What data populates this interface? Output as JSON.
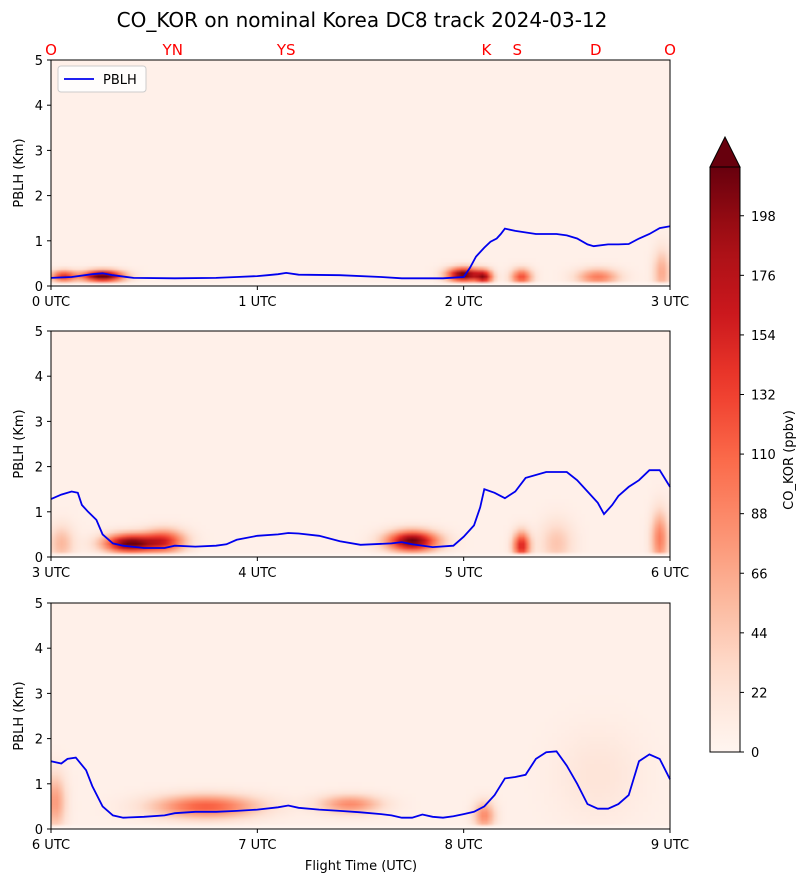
{
  "chart_data": {
    "type": "heatmap",
    "title": "CO_KOR on nominal Korea DC8 track 2024-03-12",
    "xlabel": "Flight Time (UTC)",
    "ylabel": "PBLH (Km)",
    "ylim": [
      0,
      5
    ],
    "yticks": [
      "0",
      "1",
      "2",
      "3",
      "4",
      "5"
    ],
    "legend": {
      "entries": [
        "PBLH"
      ],
      "placement": "upper-left",
      "line_color": "#0000ee"
    },
    "location_labels": [
      {
        "label": "O",
        "hour": 0.0
      },
      {
        "label": "YN",
        "hour": 0.59
      },
      {
        "label": "YS",
        "hour": 1.14
      },
      {
        "label": "K",
        "hour": 2.11
      },
      {
        "label": "S",
        "hour": 2.26
      },
      {
        "label": "D",
        "hour": 2.64
      },
      {
        "label": "O",
        "hour": 3.0
      }
    ],
    "colorbar": {
      "label": "CO_KOR (ppbv)",
      "ticks": [
        "0",
        "22",
        "44",
        "66",
        "88",
        "110",
        "132",
        "154",
        "176",
        "198"
      ],
      "min": 0,
      "max": 216,
      "extend": "max",
      "colormap": "Reds"
    },
    "panels": [
      {
        "xlim": [
          0,
          3
        ],
        "xticks": [
          "0 UTC",
          "1 UTC",
          "2 UTC",
          "3 UTC"
        ],
        "pblh": [
          [
            0.0,
            0.18
          ],
          [
            0.1,
            0.2
          ],
          [
            0.2,
            0.26
          ],
          [
            0.25,
            0.28
          ],
          [
            0.3,
            0.24
          ],
          [
            0.4,
            0.18
          ],
          [
            0.6,
            0.17
          ],
          [
            0.8,
            0.18
          ],
          [
            0.9,
            0.2
          ],
          [
            1.0,
            0.22
          ],
          [
            1.05,
            0.24
          ],
          [
            1.1,
            0.26
          ],
          [
            1.14,
            0.29
          ],
          [
            1.2,
            0.25
          ],
          [
            1.4,
            0.24
          ],
          [
            1.6,
            0.2
          ],
          [
            1.7,
            0.17
          ],
          [
            1.9,
            0.17
          ],
          [
            2.0,
            0.2
          ],
          [
            2.03,
            0.4
          ],
          [
            2.06,
            0.65
          ],
          [
            2.1,
            0.85
          ],
          [
            2.13,
            0.98
          ],
          [
            2.16,
            1.05
          ],
          [
            2.18,
            1.15
          ],
          [
            2.2,
            1.27
          ],
          [
            2.25,
            1.22
          ],
          [
            2.35,
            1.15
          ],
          [
            2.45,
            1.15
          ],
          [
            2.5,
            1.12
          ],
          [
            2.55,
            1.05
          ],
          [
            2.6,
            0.92
          ],
          [
            2.63,
            0.88
          ],
          [
            2.7,
            0.92
          ],
          [
            2.75,
            0.92
          ],
          [
            2.8,
            0.93
          ],
          [
            2.85,
            1.05
          ],
          [
            2.9,
            1.15
          ],
          [
            2.95,
            1.28
          ],
          [
            3.0,
            1.32
          ]
        ],
        "co_blobs": [
          {
            "t": 0.25,
            "z": 0.22,
            "w": 0.1,
            "h": 0.12,
            "v": 230
          },
          {
            "t": 0.06,
            "z": 0.22,
            "w": 0.06,
            "h": 0.12,
            "v": 140
          },
          {
            "t": 2.0,
            "z": 0.25,
            "w": 0.08,
            "h": 0.15,
            "v": 220
          },
          {
            "t": 2.1,
            "z": 0.2,
            "w": 0.04,
            "h": 0.15,
            "v": 150
          },
          {
            "t": 2.28,
            "z": 0.2,
            "w": 0.05,
            "h": 0.18,
            "v": 120
          },
          {
            "t": 2.65,
            "z": 0.2,
            "w": 0.1,
            "h": 0.18,
            "v": 90
          },
          {
            "t": 2.96,
            "z": 0.3,
            "w": 0.04,
            "h": 0.5,
            "v": 60
          }
        ],
        "background": 6
      },
      {
        "xlim": [
          3,
          6
        ],
        "xticks": [
          "3 UTC",
          "4 UTC",
          "5 UTC",
          "6 UTC"
        ],
        "pblh": [
          [
            3.0,
            1.28
          ],
          [
            3.05,
            1.38
          ],
          [
            3.1,
            1.45
          ],
          [
            3.13,
            1.42
          ],
          [
            3.15,
            1.15
          ],
          [
            3.18,
            1.0
          ],
          [
            3.22,
            0.82
          ],
          [
            3.25,
            0.5
          ],
          [
            3.3,
            0.3
          ],
          [
            3.35,
            0.25
          ],
          [
            3.45,
            0.2
          ],
          [
            3.55,
            0.2
          ],
          [
            3.6,
            0.25
          ],
          [
            3.7,
            0.23
          ],
          [
            3.8,
            0.25
          ],
          [
            3.85,
            0.28
          ],
          [
            3.9,
            0.38
          ],
          [
            4.0,
            0.47
          ],
          [
            4.1,
            0.5
          ],
          [
            4.15,
            0.53
          ],
          [
            4.2,
            0.52
          ],
          [
            4.3,
            0.47
          ],
          [
            4.4,
            0.35
          ],
          [
            4.5,
            0.27
          ],
          [
            4.65,
            0.3
          ],
          [
            4.7,
            0.33
          ],
          [
            4.75,
            0.28
          ],
          [
            4.85,
            0.22
          ],
          [
            4.95,
            0.25
          ],
          [
            5.0,
            0.45
          ],
          [
            5.05,
            0.7
          ],
          [
            5.08,
            1.1
          ],
          [
            5.1,
            1.5
          ],
          [
            5.15,
            1.42
          ],
          [
            5.2,
            1.3
          ],
          [
            5.25,
            1.45
          ],
          [
            5.3,
            1.75
          ],
          [
            5.4,
            1.88
          ],
          [
            5.5,
            1.88
          ],
          [
            5.55,
            1.7
          ],
          [
            5.6,
            1.45
          ],
          [
            5.65,
            1.2
          ],
          [
            5.68,
            0.95
          ],
          [
            5.72,
            1.15
          ],
          [
            5.75,
            1.35
          ],
          [
            5.8,
            1.55
          ],
          [
            5.85,
            1.7
          ],
          [
            5.9,
            1.92
          ],
          [
            5.95,
            1.92
          ],
          [
            6.0,
            1.55
          ]
        ],
        "co_blobs": [
          {
            "t": 3.38,
            "z": 0.3,
            "w": 0.12,
            "h": 0.2,
            "v": 210
          },
          {
            "t": 3.55,
            "z": 0.35,
            "w": 0.1,
            "h": 0.25,
            "v": 130
          },
          {
            "t": 3.05,
            "z": 0.3,
            "w": 0.06,
            "h": 0.4,
            "v": 50
          },
          {
            "t": 4.75,
            "z": 0.35,
            "w": 0.12,
            "h": 0.22,
            "v": 210
          },
          {
            "t": 5.28,
            "z": 0.25,
            "w": 0.04,
            "h": 0.3,
            "v": 150
          },
          {
            "t": 5.45,
            "z": 0.3,
            "w": 0.08,
            "h": 0.5,
            "v": 40
          },
          {
            "t": 5.95,
            "z": 0.4,
            "w": 0.04,
            "h": 0.6,
            "v": 90
          }
        ],
        "background": 6
      },
      {
        "xlim": [
          6,
          9
        ],
        "xticks": [
          "6 UTC",
          "7 UTC",
          "8 UTC",
          "9 UTC"
        ],
        "pblh": [
          [
            6.0,
            1.5
          ],
          [
            6.05,
            1.45
          ],
          [
            6.08,
            1.55
          ],
          [
            6.12,
            1.58
          ],
          [
            6.17,
            1.3
          ],
          [
            6.2,
            0.95
          ],
          [
            6.25,
            0.5
          ],
          [
            6.3,
            0.3
          ],
          [
            6.35,
            0.25
          ],
          [
            6.45,
            0.27
          ],
          [
            6.55,
            0.3
          ],
          [
            6.6,
            0.35
          ],
          [
            6.7,
            0.38
          ],
          [
            6.8,
            0.38
          ],
          [
            6.9,
            0.4
          ],
          [
            7.0,
            0.43
          ],
          [
            7.1,
            0.48
          ],
          [
            7.15,
            0.52
          ],
          [
            7.2,
            0.47
          ],
          [
            7.3,
            0.43
          ],
          [
            7.4,
            0.4
          ],
          [
            7.5,
            0.37
          ],
          [
            7.6,
            0.33
          ],
          [
            7.65,
            0.3
          ],
          [
            7.7,
            0.25
          ],
          [
            7.75,
            0.25
          ],
          [
            7.8,
            0.32
          ],
          [
            7.85,
            0.27
          ],
          [
            7.9,
            0.25
          ],
          [
            7.95,
            0.28
          ],
          [
            8.0,
            0.33
          ],
          [
            8.05,
            0.38
          ],
          [
            8.1,
            0.5
          ],
          [
            8.15,
            0.75
          ],
          [
            8.2,
            1.12
          ],
          [
            8.25,
            1.15
          ],
          [
            8.3,
            1.2
          ],
          [
            8.35,
            1.55
          ],
          [
            8.4,
            1.7
          ],
          [
            8.45,
            1.72
          ],
          [
            8.5,
            1.4
          ],
          [
            8.55,
            1.0
          ],
          [
            8.6,
            0.55
          ],
          [
            8.65,
            0.45
          ],
          [
            8.7,
            0.45
          ],
          [
            8.75,
            0.55
          ],
          [
            8.8,
            0.75
          ],
          [
            8.85,
            1.5
          ],
          [
            8.9,
            1.65
          ],
          [
            8.95,
            1.55
          ],
          [
            9.0,
            1.1
          ]
        ],
        "co_blobs": [
          {
            "t": 6.75,
            "z": 0.5,
            "w": 0.25,
            "h": 0.25,
            "v": 110
          },
          {
            "t": 7.45,
            "z": 0.55,
            "w": 0.15,
            "h": 0.2,
            "v": 80
          },
          {
            "t": 6.02,
            "z": 0.6,
            "w": 0.05,
            "h": 0.6,
            "v": 70
          },
          {
            "t": 8.1,
            "z": 0.3,
            "w": 0.05,
            "h": 0.3,
            "v": 80
          },
          {
            "t": 8.65,
            "z": 1.2,
            "w": 0.2,
            "h": 1.0,
            "v": 15
          }
        ],
        "background": 6
      }
    ]
  }
}
